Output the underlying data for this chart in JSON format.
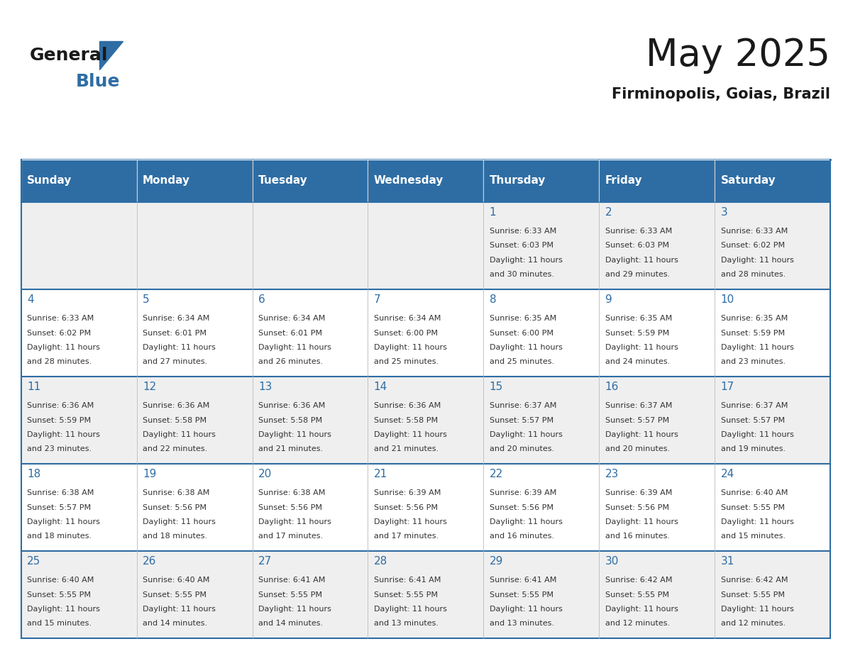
{
  "title": "May 2025",
  "subtitle": "Firminopolis, Goias, Brazil",
  "days_of_week": [
    "Sunday",
    "Monday",
    "Tuesday",
    "Wednesday",
    "Thursday",
    "Friday",
    "Saturday"
  ],
  "header_bg": "#2E6DA4",
  "header_text": "#FFFFFF",
  "cell_bg_light": "#EFEFEF",
  "cell_bg_white": "#FFFFFF",
  "cell_border": "#2E6DA4",
  "day_num_color": "#2E6DA4",
  "body_text_color": "#333333",
  "title_color": "#1a1a1a",
  "subtitle_color": "#1a1a1a",
  "logo_general_color": "#1a1a1a",
  "logo_blue_color": "#2E6DA4",
  "logo_triangle_color": "#2E6DA4",
  "calendar": [
    [
      null,
      null,
      null,
      null,
      {
        "day": 1,
        "sunrise": "6:33 AM",
        "sunset": "6:03 PM",
        "daylight": "11 hours and 30 minutes"
      },
      {
        "day": 2,
        "sunrise": "6:33 AM",
        "sunset": "6:03 PM",
        "daylight": "11 hours and 29 minutes"
      },
      {
        "day": 3,
        "sunrise": "6:33 AM",
        "sunset": "6:02 PM",
        "daylight": "11 hours and 28 minutes"
      }
    ],
    [
      {
        "day": 4,
        "sunrise": "6:33 AM",
        "sunset": "6:02 PM",
        "daylight": "11 hours and 28 minutes"
      },
      {
        "day": 5,
        "sunrise": "6:34 AM",
        "sunset": "6:01 PM",
        "daylight": "11 hours and 27 minutes"
      },
      {
        "day": 6,
        "sunrise": "6:34 AM",
        "sunset": "6:01 PM",
        "daylight": "11 hours and 26 minutes"
      },
      {
        "day": 7,
        "sunrise": "6:34 AM",
        "sunset": "6:00 PM",
        "daylight": "11 hours and 25 minutes"
      },
      {
        "day": 8,
        "sunrise": "6:35 AM",
        "sunset": "6:00 PM",
        "daylight": "11 hours and 25 minutes"
      },
      {
        "day": 9,
        "sunrise": "6:35 AM",
        "sunset": "5:59 PM",
        "daylight": "11 hours and 24 minutes"
      },
      {
        "day": 10,
        "sunrise": "6:35 AM",
        "sunset": "5:59 PM",
        "daylight": "11 hours and 23 minutes"
      }
    ],
    [
      {
        "day": 11,
        "sunrise": "6:36 AM",
        "sunset": "5:59 PM",
        "daylight": "11 hours and 23 minutes"
      },
      {
        "day": 12,
        "sunrise": "6:36 AM",
        "sunset": "5:58 PM",
        "daylight": "11 hours and 22 minutes"
      },
      {
        "day": 13,
        "sunrise": "6:36 AM",
        "sunset": "5:58 PM",
        "daylight": "11 hours and 21 minutes"
      },
      {
        "day": 14,
        "sunrise": "6:36 AM",
        "sunset": "5:58 PM",
        "daylight": "11 hours and 21 minutes"
      },
      {
        "day": 15,
        "sunrise": "6:37 AM",
        "sunset": "5:57 PM",
        "daylight": "11 hours and 20 minutes"
      },
      {
        "day": 16,
        "sunrise": "6:37 AM",
        "sunset": "5:57 PM",
        "daylight": "11 hours and 20 minutes"
      },
      {
        "day": 17,
        "sunrise": "6:37 AM",
        "sunset": "5:57 PM",
        "daylight": "11 hours and 19 minutes"
      }
    ],
    [
      {
        "day": 18,
        "sunrise": "6:38 AM",
        "sunset": "5:57 PM",
        "daylight": "11 hours and 18 minutes"
      },
      {
        "day": 19,
        "sunrise": "6:38 AM",
        "sunset": "5:56 PM",
        "daylight": "11 hours and 18 minutes"
      },
      {
        "day": 20,
        "sunrise": "6:38 AM",
        "sunset": "5:56 PM",
        "daylight": "11 hours and 17 minutes"
      },
      {
        "day": 21,
        "sunrise": "6:39 AM",
        "sunset": "5:56 PM",
        "daylight": "11 hours and 17 minutes"
      },
      {
        "day": 22,
        "sunrise": "6:39 AM",
        "sunset": "5:56 PM",
        "daylight": "11 hours and 16 minutes"
      },
      {
        "day": 23,
        "sunrise": "6:39 AM",
        "sunset": "5:56 PM",
        "daylight": "11 hours and 16 minutes"
      },
      {
        "day": 24,
        "sunrise": "6:40 AM",
        "sunset": "5:55 PM",
        "daylight": "11 hours and 15 minutes"
      }
    ],
    [
      {
        "day": 25,
        "sunrise": "6:40 AM",
        "sunset": "5:55 PM",
        "daylight": "11 hours and 15 minutes"
      },
      {
        "day": 26,
        "sunrise": "6:40 AM",
        "sunset": "5:55 PM",
        "daylight": "11 hours and 14 minutes"
      },
      {
        "day": 27,
        "sunrise": "6:41 AM",
        "sunset": "5:55 PM",
        "daylight": "11 hours and 14 minutes"
      },
      {
        "day": 28,
        "sunrise": "6:41 AM",
        "sunset": "5:55 PM",
        "daylight": "11 hours and 13 minutes"
      },
      {
        "day": 29,
        "sunrise": "6:41 AM",
        "sunset": "5:55 PM",
        "daylight": "11 hours and 13 minutes"
      },
      {
        "day": 30,
        "sunrise": "6:42 AM",
        "sunset": "5:55 PM",
        "daylight": "11 hours and 12 minutes"
      },
      {
        "day": 31,
        "sunrise": "6:42 AM",
        "sunset": "5:55 PM",
        "daylight": "11 hours and 12 minutes"
      }
    ]
  ]
}
